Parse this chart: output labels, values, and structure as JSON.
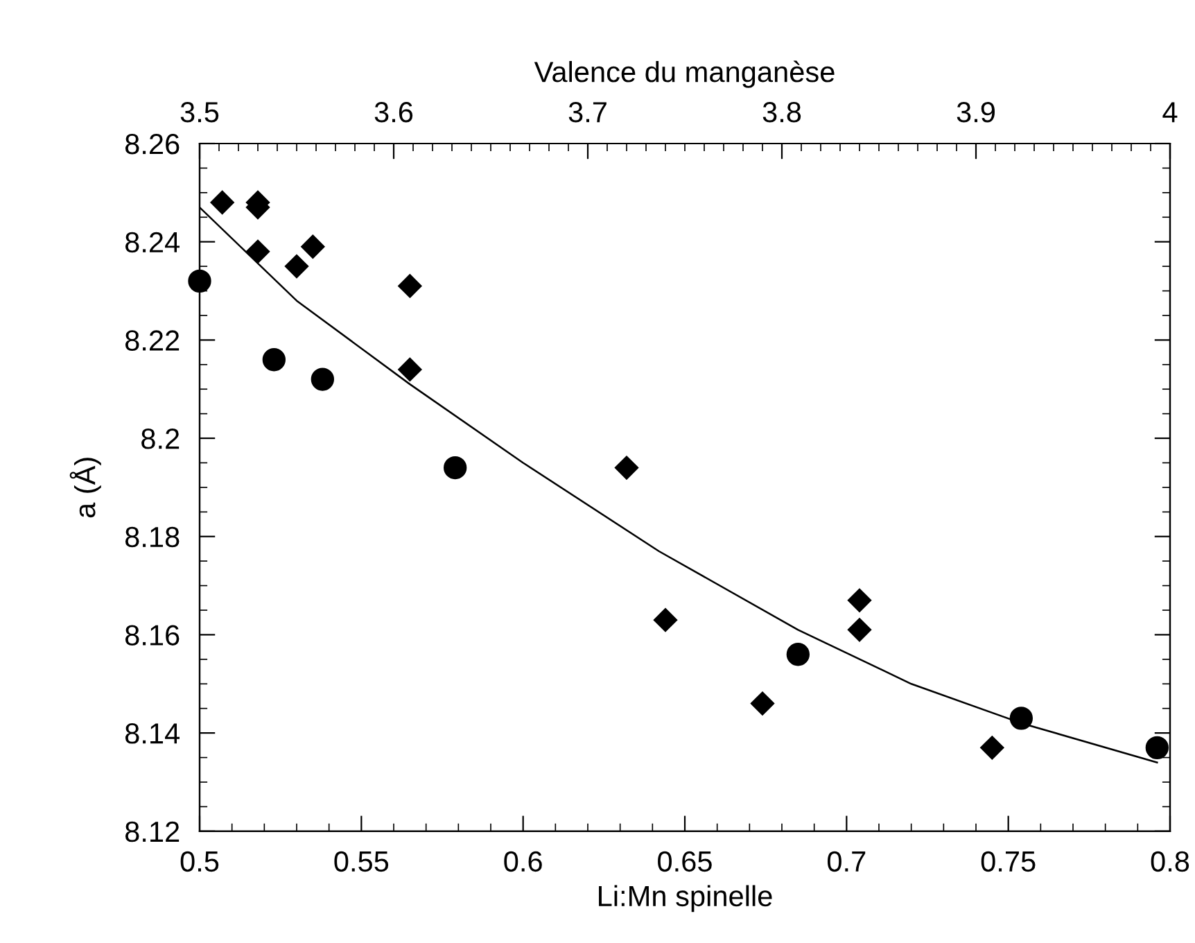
{
  "chart_data": {
    "type": "scatter",
    "xlabel": "Li:Mn spinelle",
    "ylabel": "a (Å)",
    "x2label": "Valence du manganèse",
    "xlim": [
      0.5,
      0.8
    ],
    "xticks": [
      0.5,
      0.55,
      0.6,
      0.65,
      0.7,
      0.75,
      0.8
    ],
    "ylim": [
      8.12,
      8.26
    ],
    "yticks": [
      8.12,
      8.14,
      8.16,
      8.18,
      8.2,
      8.22,
      8.24,
      8.26
    ],
    "x2lim": [
      3.5,
      4
    ],
    "x2ticks": [
      3.5,
      3.6,
      3.7,
      3.8,
      3.9,
      4
    ],
    "grid": false,
    "legend": false,
    "series": [
      {
        "marker": "circle",
        "color": "#000000",
        "x": [
          0.5,
          0.523,
          0.538,
          0.579,
          0.685,
          0.754,
          0.796
        ],
        "values": [
          8.232,
          8.216,
          8.212,
          8.194,
          8.156,
          8.143,
          8.137
        ]
      },
      {
        "marker": "diamond",
        "color": "#000000",
        "x": [
          0.507,
          0.518,
          0.518,
          0.518,
          0.53,
          0.535,
          0.565,
          0.565,
          0.632,
          0.644,
          0.674,
          0.704,
          0.704,
          0.745
        ],
        "values": [
          8.248,
          8.248,
          8.247,
          8.238,
          8.235,
          8.239,
          8.231,
          8.214,
          8.194,
          8.163,
          8.146,
          8.167,
          8.161,
          8.137
        ]
      },
      {
        "type": "line",
        "marker": "none",
        "line_style": "solid",
        "color": "#000000",
        "x": [
          0.5,
          0.53,
          0.565,
          0.6,
          0.642,
          0.685,
          0.72,
          0.754,
          0.796
        ],
        "values": [
          8.247,
          8.228,
          8.211,
          8.195,
          8.177,
          8.161,
          8.15,
          8.142,
          8.134
        ]
      }
    ]
  }
}
